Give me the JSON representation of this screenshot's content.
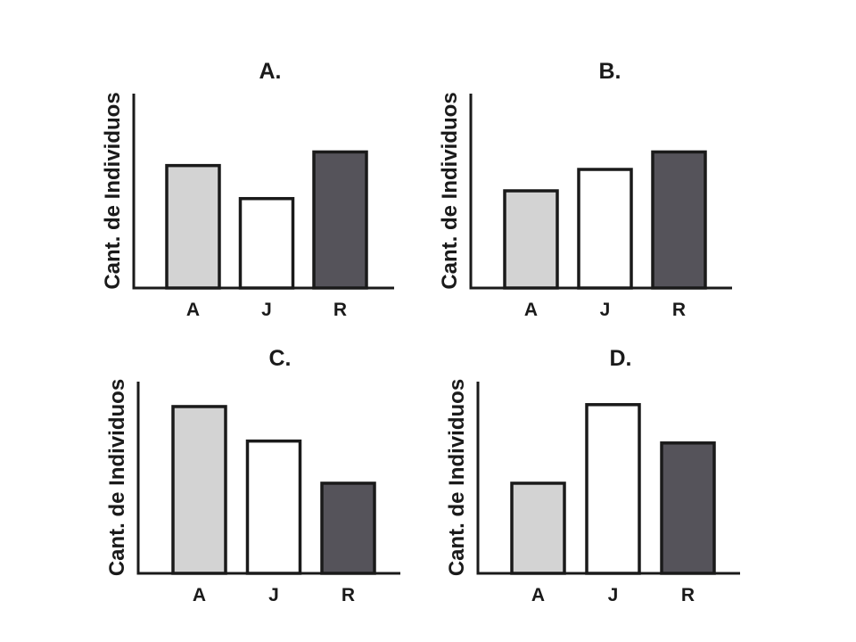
{
  "chart_data": [
    {
      "type": "bar",
      "title": "A.",
      "ylabel": "Cant. de Individuos",
      "xlabel": "",
      "categories": [
        "A",
        "J",
        "R"
      ],
      "values": [
        63,
        46,
        70
      ],
      "ylim": [
        0,
        100
      ],
      "grid": false,
      "colors": [
        "#d3d3d3",
        "#ffffff",
        "#55535a"
      ]
    },
    {
      "type": "bar",
      "title": "B.",
      "ylabel": "Cant. de Individuos",
      "xlabel": "",
      "categories": [
        "A",
        "J",
        "R"
      ],
      "values": [
        50,
        61,
        70
      ],
      "ylim": [
        0,
        100
      ],
      "grid": false,
      "colors": [
        "#d3d3d3",
        "#ffffff",
        "#55535a"
      ]
    },
    {
      "type": "bar",
      "title": "C.",
      "ylabel": "Cant. de Individuos",
      "xlabel": "",
      "categories": [
        "A",
        "J",
        "R"
      ],
      "values": [
        87,
        69,
        47
      ],
      "ylim": [
        0,
        100
      ],
      "grid": false,
      "colors": [
        "#d3d3d3",
        "#ffffff",
        "#55535a"
      ]
    },
    {
      "type": "bar",
      "title": "D.",
      "ylabel": "Cant. de Individuos",
      "xlabel": "",
      "categories": [
        "A",
        "J",
        "R"
      ],
      "values": [
        47,
        88,
        68
      ],
      "ylim": [
        0,
        100
      ],
      "grid": false,
      "colors": [
        "#d3d3d3",
        "#ffffff",
        "#55535a"
      ]
    }
  ]
}
